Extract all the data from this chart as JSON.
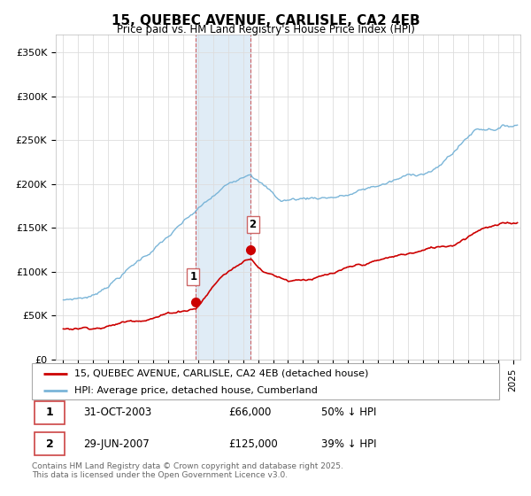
{
  "title": "15, QUEBEC AVENUE, CARLISLE, CA2 4EB",
  "subtitle": "Price paid vs. HM Land Registry's House Price Index (HPI)",
  "ylabel_ticks": [
    "£0",
    "£50K",
    "£100K",
    "£150K",
    "£200K",
    "£250K",
    "£300K",
    "£350K"
  ],
  "ytick_values": [
    0,
    50000,
    100000,
    150000,
    200000,
    250000,
    300000,
    350000
  ],
  "ylim": [
    0,
    370000
  ],
  "xlim_start": 1994.5,
  "xlim_end": 2025.5,
  "hpi_color": "#7ab5d8",
  "price_color": "#cc0000",
  "transaction1_date": 2003.83,
  "transaction1_price": 66000,
  "transaction2_date": 2007.49,
  "transaction2_price": 125000,
  "legend_line1": "15, QUEBEC AVENUE, CARLISLE, CA2 4EB (detached house)",
  "legend_line2": "HPI: Average price, detached house, Cumberland",
  "table_row1": [
    "1",
    "31-OCT-2003",
    "£66,000",
    "50% ↓ HPI"
  ],
  "table_row2": [
    "2",
    "29-JUN-2007",
    "£125,000",
    "39% ↓ HPI"
  ],
  "footnote": "Contains HM Land Registry data © Crown copyright and database right 2025.\nThis data is licensed under the Open Government Licence v3.0.",
  "background_color": "#ffffff",
  "grid_color": "#dddddd",
  "shade_color": "#cce0f0"
}
